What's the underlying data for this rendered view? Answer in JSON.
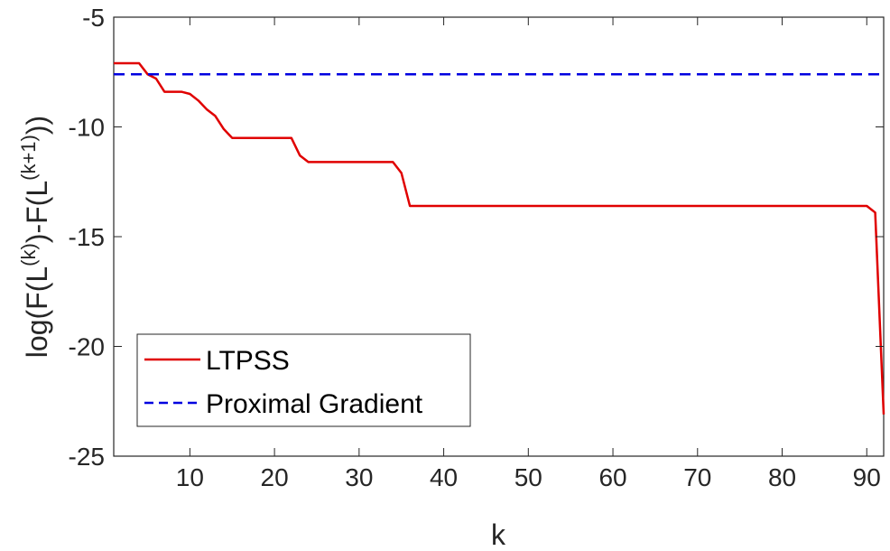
{
  "chart_data": {
    "type": "line",
    "title": "",
    "xlabel": "k",
    "ylabel_parts": {
      "prefix": "log(F(L",
      "sup1": "(k)",
      "middle": ")-F(L",
      "sup2": "(k+1)",
      "suffix": "))"
    },
    "xlim": [
      1,
      92
    ],
    "ylim": [
      -25,
      -5
    ],
    "xticks": [
      10,
      20,
      30,
      40,
      50,
      60,
      70,
      80,
      90
    ],
    "xtick_labels": [
      "10",
      "20",
      "30",
      "40",
      "50",
      "60",
      "70",
      "80",
      "90"
    ],
    "yticks": [
      -5,
      -10,
      -15,
      -20,
      -25
    ],
    "ytick_labels": [
      "-5",
      "-10",
      "-15",
      "-20",
      "-25"
    ],
    "grid": false,
    "legend_position": "bottom-left",
    "series": [
      {
        "name": "LTPSS",
        "color": "#e00000",
        "style": "solid",
        "x": [
          1,
          2,
          3,
          4,
          5,
          6,
          7,
          8,
          9,
          10,
          11,
          12,
          13,
          14,
          15,
          16,
          17,
          18,
          19,
          20,
          21,
          22,
          23,
          24,
          25,
          26,
          27,
          28,
          29,
          30,
          31,
          32,
          33,
          34,
          35,
          36,
          37,
          40,
          50,
          60,
          70,
          80,
          89,
          90,
          91,
          92
        ],
        "y": [
          -7.1,
          -7.1,
          -7.1,
          -7.1,
          -7.6,
          -7.8,
          -8.4,
          -8.4,
          -8.4,
          -8.5,
          -8.8,
          -9.2,
          -9.5,
          -10.1,
          -10.5,
          -10.5,
          -10.5,
          -10.5,
          -10.5,
          -10.5,
          -10.5,
          -10.5,
          -11.3,
          -11.6,
          -11.6,
          -11.6,
          -11.6,
          -11.6,
          -11.6,
          -11.6,
          -11.6,
          -11.6,
          -11.6,
          -11.6,
          -12.1,
          -13.6,
          -13.6,
          -13.6,
          -13.6,
          -13.6,
          -13.6,
          -13.6,
          -13.6,
          -13.6,
          -13.9,
          -23.1
        ]
      },
      {
        "name": "Proximal Gradient",
        "color": "#0000e0",
        "style": "dashed",
        "x": [
          1,
          92
        ],
        "y": [
          -7.6,
          -7.6
        ]
      }
    ]
  }
}
